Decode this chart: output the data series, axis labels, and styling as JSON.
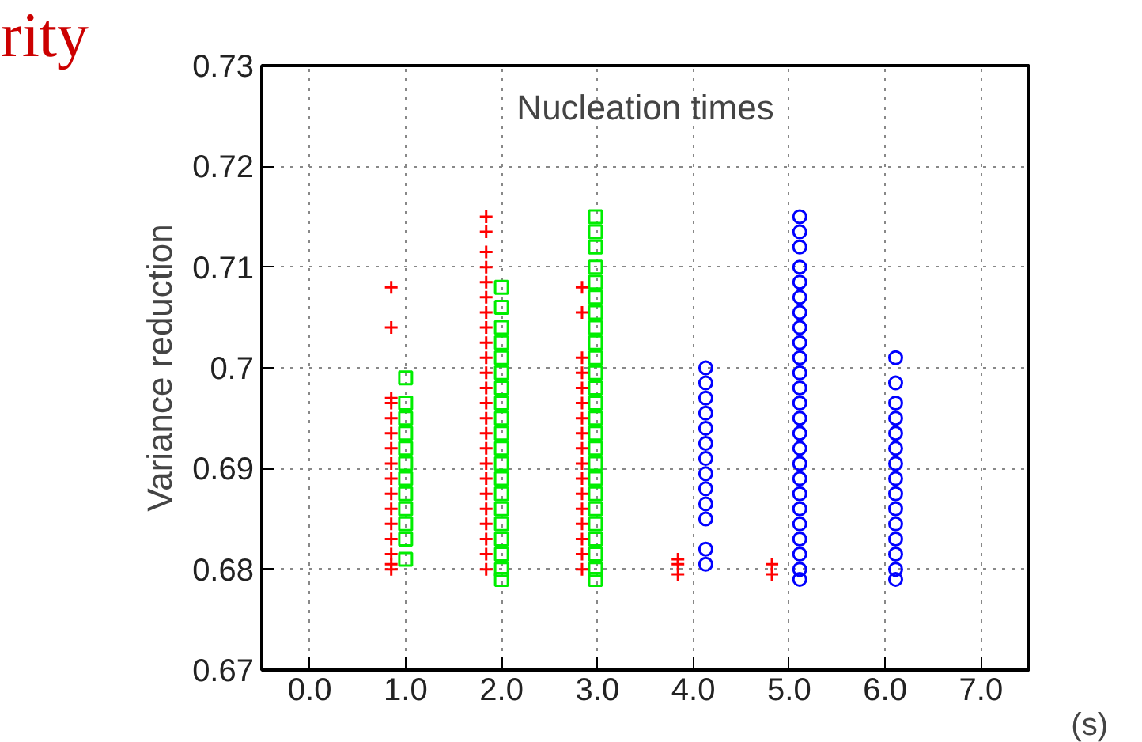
{
  "chart_data": {
    "type": "scatter",
    "title": "Nucleation times",
    "xlabel": "(s)",
    "ylabel": "Variance reduction",
    "annotations": [
      "rity"
    ],
    "xlim": [
      -0.5,
      7.5
    ],
    "ylim": [
      0.67,
      0.73
    ],
    "xticks": [
      {
        "value": 0,
        "label": "0.0"
      },
      {
        "value": 1,
        "label": "1.0"
      },
      {
        "value": 2,
        "label": "2.0"
      },
      {
        "value": 3,
        "label": "3.0"
      },
      {
        "value": 4,
        "label": "4.0"
      },
      {
        "value": 5,
        "label": "5.0"
      },
      {
        "value": 6,
        "label": "6.0"
      },
      {
        "value": 7,
        "label": "7.0"
      }
    ],
    "yticks": [
      0.67,
      0.68,
      0.69,
      0.7,
      0.71,
      0.72,
      0.73
    ],
    "grid": true,
    "series": [
      {
        "color": "#ff0000",
        "marker": "cross",
        "x": [
          0.85,
          0.85,
          0.85,
          0.85,
          0.85,
          0.85,
          0.85,
          0.85,
          0.85,
          0.85,
          0.85,
          0.85,
          0.85,
          0.85,
          0.85,
          0.85,
          1.84,
          1.84,
          1.84,
          1.84,
          1.84,
          1.84,
          1.84,
          1.84,
          1.84,
          1.84,
          1.84,
          1.84,
          1.84,
          1.84,
          1.84,
          1.84,
          1.84,
          1.84,
          1.84,
          1.84,
          1.84,
          1.84,
          1.84,
          1.84,
          2.84,
          2.84,
          2.84,
          2.84,
          2.84,
          2.84,
          2.84,
          2.84,
          2.84,
          2.84,
          2.84,
          2.84,
          2.84,
          2.84,
          2.84,
          2.84,
          2.84,
          3.84,
          3.84,
          3.84,
          4.82,
          4.82
        ],
        "values": [
          0.708,
          0.704,
          0.697,
          0.6965,
          0.695,
          0.6935,
          0.692,
          0.6905,
          0.689,
          0.6875,
          0.686,
          0.6845,
          0.683,
          0.6815,
          0.6805,
          0.68,
          0.715,
          0.7135,
          0.7115,
          0.71,
          0.7085,
          0.707,
          0.7055,
          0.704,
          0.7025,
          0.701,
          0.6995,
          0.698,
          0.6965,
          0.695,
          0.6935,
          0.692,
          0.6905,
          0.689,
          0.6875,
          0.686,
          0.6845,
          0.683,
          0.6815,
          0.68,
          0.708,
          0.7055,
          0.701,
          0.6995,
          0.698,
          0.6965,
          0.695,
          0.6935,
          0.692,
          0.6905,
          0.689,
          0.6875,
          0.686,
          0.6845,
          0.683,
          0.6815,
          0.68,
          0.6795,
          0.6805,
          0.681,
          0.6795,
          0.6805
        ]
      },
      {
        "color": "#00ee00",
        "marker": "square",
        "x": [
          1.0,
          1.0,
          1.0,
          1.0,
          1.0,
          1.0,
          1.0,
          1.0,
          1.0,
          1.0,
          1.0,
          1.0,
          2.0,
          2.0,
          2.0,
          2.0,
          2.0,
          2.0,
          2.0,
          2.0,
          2.0,
          2.0,
          2.0,
          2.0,
          2.0,
          2.0,
          2.0,
          2.0,
          2.0,
          2.0,
          2.0,
          2.0,
          2.98,
          2.98,
          2.98,
          2.98,
          2.98,
          2.98,
          2.98,
          2.98,
          2.98,
          2.98,
          2.98,
          2.98,
          2.98,
          2.98,
          2.98,
          2.98,
          2.98,
          2.98,
          2.98,
          2.98,
          2.98,
          2.98,
          2.98,
          2.98,
          2.98
        ],
        "values": [
          0.699,
          0.6965,
          0.695,
          0.6935,
          0.692,
          0.6905,
          0.689,
          0.6875,
          0.686,
          0.6845,
          0.683,
          0.681,
          0.708,
          0.706,
          0.704,
          0.7025,
          0.701,
          0.6995,
          0.698,
          0.6965,
          0.695,
          0.6935,
          0.692,
          0.6905,
          0.689,
          0.6875,
          0.686,
          0.6845,
          0.683,
          0.6815,
          0.68,
          0.679,
          0.715,
          0.7135,
          0.712,
          0.71,
          0.7085,
          0.707,
          0.7055,
          0.704,
          0.7025,
          0.701,
          0.6995,
          0.698,
          0.6965,
          0.695,
          0.6935,
          0.692,
          0.6905,
          0.689,
          0.6875,
          0.686,
          0.6845,
          0.683,
          0.6815,
          0.68,
          0.679
        ]
      },
      {
        "color": "#0000ff",
        "marker": "circle",
        "x": [
          4.13,
          4.13,
          4.13,
          4.13,
          4.13,
          4.13,
          4.13,
          4.13,
          4.13,
          4.13,
          4.13,
          4.13,
          4.13,
          5.11,
          5.11,
          5.11,
          5.11,
          5.11,
          5.11,
          5.11,
          5.11,
          5.11,
          5.11,
          5.11,
          5.11,
          5.11,
          5.11,
          5.11,
          5.11,
          5.11,
          5.11,
          5.11,
          5.11,
          5.11,
          5.11,
          5.11,
          5.11,
          5.11,
          6.11,
          6.11,
          6.11,
          6.11,
          6.11,
          6.11,
          6.11,
          6.11,
          6.11,
          6.11,
          6.11,
          6.11,
          6.11,
          6.11,
          6.11
        ],
        "values": [
          0.7,
          0.6985,
          0.697,
          0.6955,
          0.694,
          0.6925,
          0.691,
          0.6895,
          0.688,
          0.6865,
          0.685,
          0.682,
          0.6805,
          0.715,
          0.7135,
          0.712,
          0.71,
          0.7085,
          0.707,
          0.7055,
          0.704,
          0.7025,
          0.701,
          0.6995,
          0.698,
          0.6965,
          0.695,
          0.6935,
          0.692,
          0.6905,
          0.689,
          0.6875,
          0.686,
          0.6845,
          0.683,
          0.6815,
          0.68,
          0.679,
          0.701,
          0.6985,
          0.6965,
          0.695,
          0.6935,
          0.692,
          0.6905,
          0.689,
          0.6875,
          0.686,
          0.6845,
          0.683,
          0.6815,
          0.68,
          0.679
        ]
      }
    ]
  }
}
